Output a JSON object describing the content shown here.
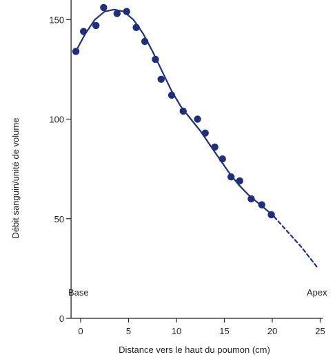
{
  "chart_data": {
    "type": "scatter",
    "title": "",
    "xlabel": "Distance vers le haut du poumon (cm)",
    "ylabel": "Débit sanguin/unité de volume",
    "xlim": [
      -1,
      25
    ],
    "ylim": [
      0,
      160
    ],
    "xticks": [
      0,
      5,
      10,
      15,
      20,
      25
    ],
    "yticks": [
      0,
      50,
      100,
      150
    ],
    "grid": false,
    "legend": "none",
    "annotations": {
      "base": "Base",
      "apex": "Apex"
    },
    "colors": {
      "points": "#1f2f7a",
      "curve": "#1f2f7a",
      "axis": "#222222"
    },
    "series": [
      {
        "type": "scatter",
        "points": [
          {
            "x": -0.5,
            "y": 134
          },
          {
            "x": 0.3,
            "y": 144
          },
          {
            "x": 1.6,
            "y": 147
          },
          {
            "x": 2.4,
            "y": 156
          },
          {
            "x": 3.8,
            "y": 153
          },
          {
            "x": 4.8,
            "y": 154
          },
          {
            "x": 5.8,
            "y": 146
          },
          {
            "x": 6.7,
            "y": 139
          },
          {
            "x": 7.8,
            "y": 130
          },
          {
            "x": 8.4,
            "y": 120
          },
          {
            "x": 9.5,
            "y": 112
          },
          {
            "x": 10.7,
            "y": 104
          },
          {
            "x": 12.2,
            "y": 100
          },
          {
            "x": 13.0,
            "y": 93
          },
          {
            "x": 14.0,
            "y": 86
          },
          {
            "x": 14.8,
            "y": 80
          },
          {
            "x": 15.7,
            "y": 71
          },
          {
            "x": 16.6,
            "y": 69
          },
          {
            "x": 17.8,
            "y": 60
          },
          {
            "x": 18.9,
            "y": 57
          },
          {
            "x": 19.9,
            "y": 52
          }
        ]
      },
      {
        "type": "line",
        "style": "solid",
        "points": [
          {
            "x": -0.5,
            "y": 134
          },
          {
            "x": 0.5,
            "y": 143
          },
          {
            "x": 1.5,
            "y": 150
          },
          {
            "x": 2.5,
            "y": 154
          },
          {
            "x": 3.5,
            "y": 155
          },
          {
            "x": 4.5,
            "y": 154
          },
          {
            "x": 5.5,
            "y": 150
          },
          {
            "x": 6.5,
            "y": 143
          },
          {
            "x": 7.5,
            "y": 134
          },
          {
            "x": 8.5,
            "y": 124
          },
          {
            "x": 9.5,
            "y": 114
          },
          {
            "x": 10.5,
            "y": 106
          },
          {
            "x": 11.5,
            "y": 100
          },
          {
            "x": 12.5,
            "y": 94
          },
          {
            "x": 13.5,
            "y": 87
          },
          {
            "x": 14.5,
            "y": 80
          },
          {
            "x": 15.5,
            "y": 73
          },
          {
            "x": 16.5,
            "y": 67
          },
          {
            "x": 17.5,
            "y": 62
          },
          {
            "x": 18.5,
            "y": 58
          },
          {
            "x": 19.5,
            "y": 54
          },
          {
            "x": 20.2,
            "y": 51
          }
        ]
      },
      {
        "type": "line",
        "style": "dashed",
        "points": [
          {
            "x": 20.2,
            "y": 51
          },
          {
            "x": 21.5,
            "y": 44
          },
          {
            "x": 23.0,
            "y": 36
          },
          {
            "x": 24.8,
            "y": 25
          }
        ]
      }
    ]
  }
}
